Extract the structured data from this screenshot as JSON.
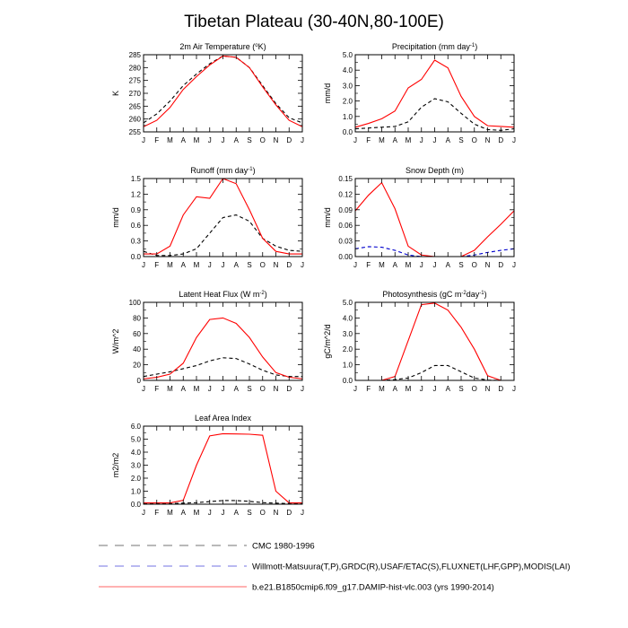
{
  "figure": {
    "title": "Tibetan Plateau (30-40N,80-100E)"
  },
  "legend": [
    {
      "label": "CMC 1980-1996",
      "color": "#000000",
      "dash": "dashed",
      "opacity": 0.55
    },
    {
      "label": "Willmott-Matsuura(T,P),GRDC(R),USAF/ETAC(S),FLUXNET(LHF,GPP),MODIS(LAI)",
      "color": "#0000cc",
      "dash": "dashed",
      "opacity": 0.55
    },
    {
      "label": "b.e21.B1850cmip6.f09_g17.DAMIP-hist-vlc.003 (yrs 1990-2014)",
      "color": "#ff0000",
      "dash": "solid",
      "opacity": 0.6
    }
  ],
  "chart_data": [
    {
      "type": "line",
      "title": "2m Air Temperature (°K)",
      "ylabel": "K",
      "categories": [
        "J",
        "F",
        "M",
        "A",
        "M",
        "J",
        "J",
        "A",
        "S",
        "O",
        "N",
        "D",
        "J"
      ],
      "ylim": [
        255,
        285
      ],
      "yticks": [
        "255",
        "260",
        "265",
        "270",
        "275",
        "280",
        "285"
      ],
      "ytick_values": [
        255,
        260,
        265,
        270,
        275,
        280,
        285
      ],
      "series": [
        {
          "color": "#000000",
          "dash": true,
          "values": [
            258.5,
            262,
            267,
            273,
            277.5,
            281.5,
            284.5,
            284,
            280,
            273,
            266,
            260.5,
            258.5
          ]
        },
        {
          "color": "#ff0000",
          "dash": false,
          "values": [
            257,
            259.5,
            264.5,
            271.5,
            276.5,
            281,
            284.5,
            284,
            280,
            272.5,
            265.5,
            259.5,
            257
          ]
        }
      ]
    },
    {
      "type": "line",
      "title": "Precipitation (mm day-1)",
      "ylabel": "mm/d",
      "categories": [
        "J",
        "F",
        "M",
        "A",
        "M",
        "J",
        "J",
        "A",
        "S",
        "O",
        "N",
        "D",
        "J"
      ],
      "ylim": [
        0,
        5
      ],
      "yticks": [
        "0.0",
        "1.0",
        "2.0",
        "3.0",
        "4.0",
        "5.0"
      ],
      "ytick_values": [
        0,
        1,
        2,
        3,
        4,
        5
      ],
      "series": [
        {
          "color": "#000000",
          "dash": true,
          "values": [
            0.2,
            0.25,
            0.3,
            0.35,
            0.65,
            1.6,
            2.15,
            1.95,
            1.2,
            0.5,
            0.15,
            0.1,
            0.2
          ]
        },
        {
          "color": "#ff0000",
          "dash": false,
          "values": [
            0.3,
            0.55,
            0.85,
            1.35,
            2.85,
            3.4,
            4.65,
            4.15,
            2.3,
            1.0,
            0.4,
            0.35,
            0.3
          ]
        }
      ]
    },
    {
      "type": "line",
      "title": "Runoff (mm day-1)",
      "ylabel": "mm/d",
      "categories": [
        "J",
        "F",
        "M",
        "A",
        "M",
        "J",
        "J",
        "A",
        "S",
        "O",
        "N",
        "D",
        "J"
      ],
      "ylim": [
        0,
        1.5
      ],
      "yticks": [
        "0.0",
        "0.3",
        "0.6",
        "0.9",
        "1.2",
        "1.5"
      ],
      "ytick_values": [
        0,
        0.3,
        0.6,
        0.9,
        1.2,
        1.5
      ],
      "series": [
        {
          "color": "#000000",
          "dash": true,
          "values": [
            0.1,
            0.02,
            0.02,
            0.05,
            0.15,
            0.45,
            0.75,
            0.8,
            0.68,
            0.35,
            0.2,
            0.12,
            0.1
          ]
        },
        {
          "color": "#ff0000",
          "dash": false,
          "values": [
            0.05,
            0.05,
            0.2,
            0.8,
            1.15,
            1.12,
            1.5,
            1.4,
            0.9,
            0.35,
            0.1,
            0.05,
            0.05
          ]
        }
      ]
    },
    {
      "type": "line",
      "title": "Snow Depth (m)",
      "ylabel": "mm/d",
      "categories": [
        "J",
        "F",
        "M",
        "A",
        "M",
        "J",
        "J",
        "A",
        "S",
        "O",
        "N",
        "D",
        "J"
      ],
      "ylim": [
        0,
        0.15
      ],
      "yticks": [
        "0.00",
        "0.03",
        "0.06",
        "0.09",
        "0.12",
        "0.15"
      ],
      "ytick_values": [
        0,
        0.03,
        0.06,
        0.09,
        0.12,
        0.15
      ],
      "series": [
        {
          "color": "#0000cc",
          "dash": true,
          "values": [
            0.015,
            0.019,
            0.018,
            0.012,
            0.003,
            0.0,
            0.0,
            0.0,
            0.0,
            0.003,
            0.008,
            0.012,
            0.015
          ]
        },
        {
          "color": "#ff0000",
          "dash": false,
          "values": [
            0.088,
            0.118,
            0.142,
            0.092,
            0.02,
            0.003,
            0.0,
            0.0,
            0.0,
            0.012,
            0.038,
            0.062,
            0.088
          ]
        }
      ]
    },
    {
      "type": "line",
      "title": "Latent Heat Flux (W m-2)",
      "ylabel": "W/m^2",
      "categories": [
        "J",
        "F",
        "M",
        "A",
        "M",
        "J",
        "J",
        "A",
        "S",
        "O",
        "N",
        "D",
        "J"
      ],
      "ylim": [
        0,
        100
      ],
      "yticks": [
        "0",
        "20",
        "40",
        "60",
        "80",
        "100"
      ],
      "ytick_values": [
        0,
        20,
        40,
        60,
        80,
        100
      ],
      "series": [
        {
          "color": "#000000",
          "dash": true,
          "values": [
            5,
            8,
            11,
            15,
            19,
            25,
            29,
            28,
            21,
            13,
            7,
            5,
            5
          ]
        },
        {
          "color": "#ff0000",
          "dash": false,
          "values": [
            2,
            4,
            8,
            22,
            55,
            78,
            80,
            73,
            55,
            30,
            10,
            4,
            2
          ]
        }
      ]
    },
    {
      "type": "line",
      "title": "Photosynthesis (gC m-2day-1)",
      "ylabel": "gC/m^2/d",
      "categories": [
        "J",
        "F",
        "M",
        "A",
        "M",
        "J",
        "J",
        "A",
        "S",
        "O",
        "N",
        "D",
        "J"
      ],
      "ylim": [
        0,
        5
      ],
      "yticks": [
        "0.0",
        "1.0",
        "2.0",
        "3.0",
        "4.0",
        "5.0"
      ],
      "ytick_values": [
        0,
        1,
        2,
        3,
        4,
        5
      ],
      "series": [
        {
          "color": "#000000",
          "dash": true,
          "values": [
            0.0,
            0.0,
            0.0,
            0.05,
            0.15,
            0.5,
            0.95,
            0.95,
            0.55,
            0.15,
            0.02,
            0.0,
            0.0
          ]
        },
        {
          "color": "#ff0000",
          "dash": false,
          "values": [
            0.0,
            0.0,
            0.0,
            0.25,
            2.55,
            4.85,
            4.95,
            4.5,
            3.4,
            2.0,
            0.3,
            0.0,
            0.0
          ]
        }
      ]
    },
    {
      "type": "line",
      "title": "Leaf Area Index",
      "ylabel": "m2/m2",
      "categories": [
        "J",
        "F",
        "M",
        "A",
        "M",
        "J",
        "J",
        "A",
        "S",
        "O",
        "N",
        "D",
        "J"
      ],
      "ylim": [
        0,
        6
      ],
      "yticks": [
        "0.0",
        "1.0",
        "2.0",
        "3.0",
        "4.0",
        "5.0",
        "6.0"
      ],
      "ytick_values": [
        0,
        1,
        2,
        3,
        4,
        5,
        6
      ],
      "series": [
        {
          "color": "#000000",
          "dash": true,
          "values": [
            0.05,
            0.05,
            0.05,
            0.08,
            0.12,
            0.2,
            0.28,
            0.28,
            0.22,
            0.12,
            0.08,
            0.05,
            0.05
          ]
        },
        {
          "color": "#ff0000",
          "dash": false,
          "values": [
            0.1,
            0.1,
            0.1,
            0.3,
            3.0,
            5.25,
            5.42,
            5.4,
            5.38,
            5.3,
            1.0,
            0.1,
            0.1
          ]
        }
      ]
    }
  ]
}
